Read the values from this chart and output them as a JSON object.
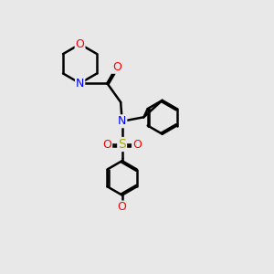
{
  "background_color": "#e8e8e8",
  "bond_color": "#000000",
  "atom_colors": {
    "N": "#0000ff",
    "O": "#ff0000",
    "S": "#aaaa00",
    "C": "#000000"
  },
  "line_width": 1.8,
  "figsize": [
    3.0,
    3.0
  ],
  "dpi": 100,
  "xlim": [
    0,
    10
  ],
  "ylim": [
    0,
    10
  ]
}
